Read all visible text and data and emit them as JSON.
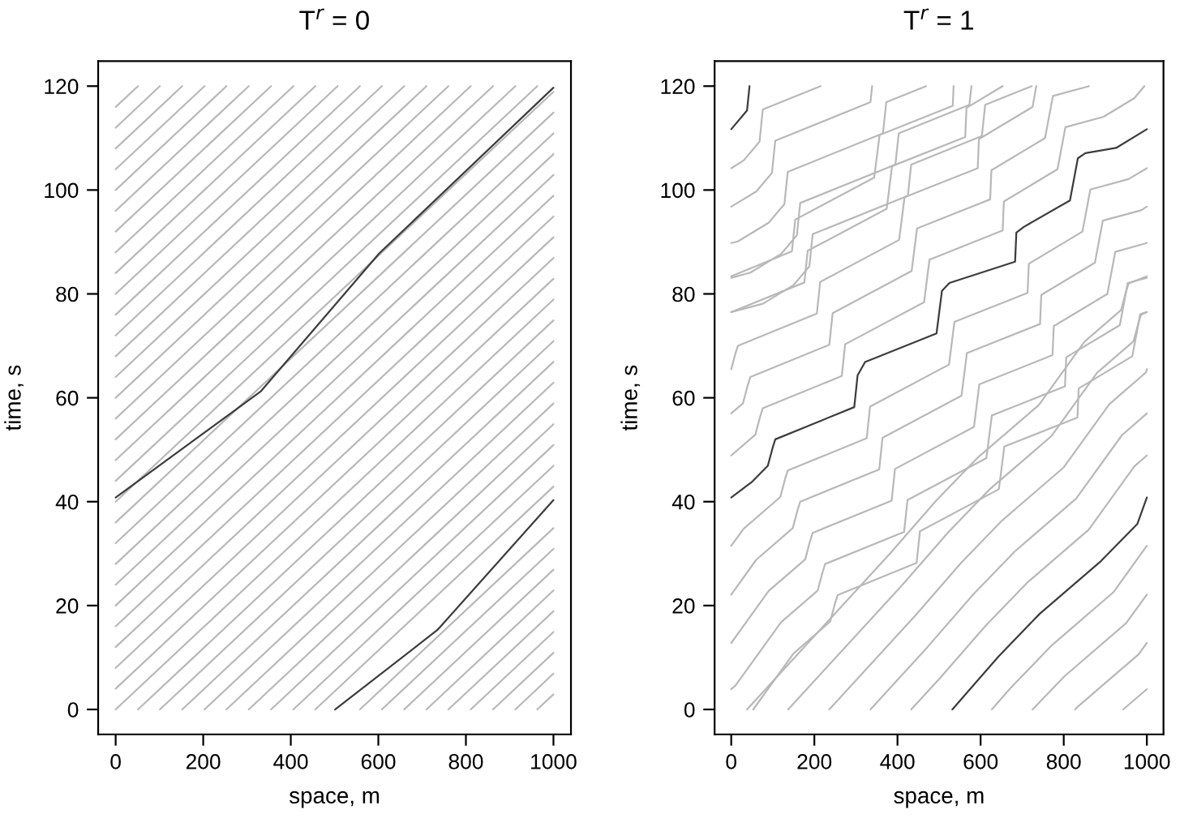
{
  "chart_data": [
    {
      "type": "line",
      "title": "T$^{r}$ = 0",
      "xlabel": "space, m",
      "ylabel": "time, s",
      "xlim": [
        -40,
        1040
      ],
      "ylim": [
        -4.8,
        124.8
      ],
      "xticks": [
        0,
        200,
        400,
        600,
        800,
        1000
      ],
      "yticks": [
        0,
        20,
        40,
        60,
        80,
        100,
        120
      ],
      "line_style": "solid",
      "series": [
        {
          "color": "#b8b8b8",
          "x": [
            0,
            1000
          ],
          "values": [
            0,
            78.9
          ]
        },
        {
          "color": "#b8b8b8",
          "x": [
            0,
            1000
          ],
          "values": [
            4,
            82.9
          ]
        },
        {
          "color": "#b8b8b8",
          "x": [
            0,
            1000
          ],
          "values": [
            8,
            86.9
          ]
        },
        {
          "color": "#b8b8b8",
          "x": [
            0,
            1000
          ],
          "values": [
            12,
            90.9
          ]
        },
        {
          "color": "#b8b8b8",
          "x": [
            0,
            1000
          ],
          "values": [
            16,
            94.9
          ]
        },
        {
          "color": "#b8b8b8",
          "x": [
            0,
            1000
          ],
          "values": [
            20,
            98.9
          ]
        },
        {
          "color": "#b8b8b8",
          "x": [
            0,
            1000
          ],
          "values": [
            24,
            102.9
          ]
        },
        {
          "color": "#b8b8b8",
          "x": [
            0,
            1000
          ],
          "values": [
            28,
            106.9
          ]
        },
        {
          "color": "#b8b8b8",
          "x": [
            0,
            1000
          ],
          "values": [
            32,
            110.9
          ]
        },
        {
          "color": "#b8b8b8",
          "x": [
            0,
            1000
          ],
          "values": [
            36,
            114.9
          ]
        },
        {
          "color": "#b8b8b8",
          "x": [
            0,
            1000
          ],
          "values": [
            40,
            118.9
          ]
        },
        {
          "color": "#b8b8b8",
          "x": [
            0,
            963
          ],
          "values": [
            44,
            120
          ]
        },
        {
          "color": "#b8b8b8",
          "x": [
            0,
            913
          ],
          "values": [
            48,
            120
          ]
        },
        {
          "color": "#b8b8b8",
          "x": [
            0,
            862
          ],
          "values": [
            52,
            120
          ]
        },
        {
          "color": "#b8b8b8",
          "x": [
            0,
            811
          ],
          "values": [
            56,
            120
          ]
        },
        {
          "color": "#b8b8b8",
          "x": [
            0,
            760
          ],
          "values": [
            60,
            120
          ]
        },
        {
          "color": "#b8b8b8",
          "x": [
            0,
            710
          ],
          "values": [
            64,
            120
          ]
        },
        {
          "color": "#b8b8b8",
          "x": [
            0,
            659
          ],
          "values": [
            68,
            120
          ]
        },
        {
          "color": "#b8b8b8",
          "x": [
            0,
            608
          ],
          "values": [
            72,
            120
          ]
        },
        {
          "color": "#b8b8b8",
          "x": [
            0,
            558
          ],
          "values": [
            76,
            120
          ]
        },
        {
          "color": "#b8b8b8",
          "x": [
            0,
            507
          ],
          "values": [
            80,
            120
          ]
        },
        {
          "color": "#b8b8b8",
          "x": [
            0,
            456
          ],
          "values": [
            84,
            120
          ]
        },
        {
          "color": "#b8b8b8",
          "x": [
            0,
            406
          ],
          "values": [
            88,
            120
          ]
        },
        {
          "color": "#b8b8b8",
          "x": [
            0,
            355
          ],
          "values": [
            92,
            120
          ]
        },
        {
          "color": "#b8b8b8",
          "x": [
            0,
            304
          ],
          "values": [
            96,
            120
          ]
        },
        {
          "color": "#b8b8b8",
          "x": [
            0,
            253
          ],
          "values": [
            100,
            120
          ]
        },
        {
          "color": "#b8b8b8",
          "x": [
            0,
            203
          ],
          "values": [
            104,
            120
          ]
        },
        {
          "color": "#b8b8b8",
          "x": [
            0,
            152
          ],
          "values": [
            108,
            120
          ]
        },
        {
          "color": "#b8b8b8",
          "x": [
            0,
            101
          ],
          "values": [
            112,
            120
          ]
        },
        {
          "color": "#b8b8b8",
          "x": [
            0,
            51
          ],
          "values": [
            116,
            120
          ]
        },
        {
          "color": "#b8b8b8",
          "x": [
            51,
            1000
          ],
          "values": [
            0,
            74.9
          ]
        },
        {
          "color": "#b8b8b8",
          "x": [
            101,
            1000
          ],
          "values": [
            0,
            70.9
          ]
        },
        {
          "color": "#b8b8b8",
          "x": [
            152,
            1000
          ],
          "values": [
            0,
            66.9
          ]
        },
        {
          "color": "#b8b8b8",
          "x": [
            203,
            1000
          ],
          "values": [
            0,
            62.9
          ]
        },
        {
          "color": "#b8b8b8",
          "x": [
            253,
            1000
          ],
          "values": [
            0,
            58.9
          ]
        },
        {
          "color": "#b8b8b8",
          "x": [
            304,
            1000
          ],
          "values": [
            0,
            54.9
          ]
        },
        {
          "color": "#b8b8b8",
          "x": [
            355,
            1000
          ],
          "values": [
            0,
            50.9
          ]
        },
        {
          "color": "#b8b8b8",
          "x": [
            406,
            1000
          ],
          "values": [
            0,
            46.9
          ]
        },
        {
          "color": "#b8b8b8",
          "x": [
            456,
            1000
          ],
          "values": [
            0,
            42.9
          ]
        },
        {
          "color": "#b8b8b8",
          "x": [
            558,
            1000
          ],
          "values": [
            0,
            34.9
          ]
        },
        {
          "color": "#b8b8b8",
          "x": [
            608,
            1000
          ],
          "values": [
            0,
            30.9
          ]
        },
        {
          "color": "#b8b8b8",
          "x": [
            659,
            1000
          ],
          "values": [
            0,
            26.9
          ]
        },
        {
          "color": "#b8b8b8",
          "x": [
            710,
            1000
          ],
          "values": [
            0,
            22.9
          ]
        },
        {
          "color": "#b8b8b8",
          "x": [
            760,
            1000
          ],
          "values": [
            0,
            18.9
          ]
        },
        {
          "color": "#b8b8b8",
          "x": [
            811,
            1000
          ],
          "values": [
            0,
            14.9
          ]
        },
        {
          "color": "#b8b8b8",
          "x": [
            862,
            1000
          ],
          "values": [
            0,
            10.9
          ]
        },
        {
          "color": "#b8b8b8",
          "x": [
            913,
            1000
          ],
          "values": [
            0,
            6.9
          ]
        },
        {
          "color": "#b8b8b8",
          "x": [
            963,
            1000
          ],
          "values": [
            0,
            2.9
          ]
        },
        {
          "color": "#3c3c3c",
          "x": [
            501,
            735,
            1000
          ],
          "values": [
            0,
            15.3,
            40.3
          ]
        },
        {
          "color": "#3c3c3c",
          "x": [
            0,
            331,
            602,
            1000
          ],
          "values": [
            40.8,
            61.2,
            87.8,
            119.7
          ]
        }
      ]
    },
    {
      "type": "line",
      "title": "T$^{r}$ = 1",
      "xlabel": "space, m",
      "ylabel": "time, s",
      "xlim": [
        -40,
        1040
      ],
      "ylim": [
        -4.8,
        124.8
      ],
      "xticks": [
        0,
        200,
        400,
        600,
        800,
        1000
      ],
      "yticks": [
        0,
        20,
        40,
        60,
        80,
        100,
        120
      ],
      "line_style": "solid",
      "series": [
        {
          "color": "#b8b8b8",
          "x": [
            38,
            382,
            493,
            592,
            740,
            850,
            938,
            950,
            956,
            1000
          ],
          "values": [
            0,
            30,
            40.2,
            48.4,
            58.6,
            70.8,
            76.9,
            80.5,
            82,
            83.4
          ]
        },
        {
          "color": "#b8b8b8",
          "x": [
            0,
            146,
            154,
            344,
            357,
            533,
            535
          ],
          "values": [
            83.4,
            88.2,
            94.3,
            102.4,
            110.6,
            116.2,
            120
          ]
        },
        {
          "color": "#b8b8b8",
          "x": [
            137,
            412,
            523,
            622,
            770,
            880,
            968,
            980,
            986,
            1000
          ],
          "values": [
            0,
            24,
            34.2,
            42.4,
            52.6,
            64.8,
            70.9,
            74.5,
            76,
            76.5
          ]
        },
        {
          "color": "#b8b8b8",
          "x": [
            0,
            176,
            184,
            374,
            387,
            563,
            566,
            653
          ],
          "values": [
            76.5,
            82.2,
            88.3,
            96.4,
            104.6,
            110.2,
            115.8,
            120
          ]
        },
        {
          "color": "#b8b8b8",
          "x": [
            236,
            442,
            553,
            652,
            800,
            910,
            998,
            1000
          ],
          "values": [
            0,
            18,
            28.2,
            36.4,
            46.6,
            58.8,
            64.9,
            65.5
          ]
        },
        {
          "color": "#b8b8b8",
          "x": [
            0,
            10,
            16,
            206,
            214,
            404,
            417,
            593,
            596,
            725,
            734
          ],
          "values": [
            65.5,
            68.5,
            70,
            76.2,
            82.3,
            90.4,
            98.6,
            104.2,
            109.8,
            116,
            120
          ]
        },
        {
          "color": "#b8b8b8",
          "x": [
            335,
            472,
            583,
            682,
            830,
            940,
            1000
          ],
          "values": [
            0,
            12,
            22.2,
            30.4,
            40.6,
            52.8,
            57.0
          ]
        },
        {
          "color": "#b8b8b8",
          "x": [
            0,
            28,
            40,
            46,
            236,
            244,
            434,
            447,
            623,
            626,
            755,
            774,
            861
          ],
          "values": [
            57.0,
            58.9,
            62.5,
            64,
            70.2,
            76.3,
            84.4,
            92.6,
            98.2,
            103.8,
            110,
            118.1,
            120
          ]
        },
        {
          "color": "#b8b8b8",
          "x": [
            433,
            502,
            613,
            712,
            860,
            970,
            1000
          ],
          "values": [
            0,
            6,
            16.2,
            24.4,
            34.6,
            46.8,
            48.9
          ]
        },
        {
          "color": "#b8b8b8",
          "x": [
            0,
            58,
            70,
            76,
            266,
            274,
            464,
            477,
            653,
            656,
            785,
            804,
            896,
            970,
            994
          ],
          "values": [
            48.9,
            52.9,
            56.5,
            58,
            64.2,
            70.3,
            78.4,
            86.6,
            92.2,
            97.8,
            104,
            112.1,
            114.1,
            117.7,
            120
          ]
        },
        {
          "color": "#b8b8b8",
          "x": [
            627,
            673,
            772,
            920,
            1000
          ],
          "values": [
            0,
            4.2,
            12.4,
            22.6,
            31.5
          ]
        },
        {
          "color": "#b8b8b8",
          "x": [
            0,
            30,
            118,
            130,
            136,
            326,
            334,
            524,
            537,
            713,
            716,
            845,
            864,
            956,
            1000
          ],
          "values": [
            31.5,
            34.8,
            40.9,
            44.5,
            46,
            52.2,
            58.3,
            66.4,
            74.6,
            80.2,
            85.8,
            92,
            100.1,
            102.1,
            104.2
          ]
        },
        {
          "color": "#b8b8b8",
          "x": [
            0,
            30,
            68,
            74,
            76,
            215
          ],
          "values": [
            104.2,
            105.7,
            109.3,
            114,
            115.5,
            120
          ]
        },
        {
          "color": "#b8b8b8",
          "x": [
            725,
            802,
            950,
            1000
          ],
          "values": [
            0,
            6.4,
            16.6,
            22.1
          ]
        },
        {
          "color": "#b8b8b8",
          "x": [
            0,
            60,
            148,
            160,
            166,
            356,
            364,
            554,
            567,
            743,
            746,
            875,
            894,
            986,
            1000
          ],
          "values": [
            22.1,
            28.8,
            34.9,
            38.5,
            40,
            46.2,
            52.3,
            60.4,
            68.6,
            74.2,
            79.8,
            86,
            94.1,
            96.1,
            96.8
          ]
        },
        {
          "color": "#b8b8b8",
          "x": [
            0,
            60,
            98,
            104,
            106,
            335,
            339
          ],
          "values": [
            96.8,
            99.7,
            103.3,
            108,
            109.5,
            116.9,
            120
          ]
        },
        {
          "color": "#b8b8b8",
          "x": [
            827,
            832,
            980,
            1000
          ],
          "values": [
            0,
            0.4,
            10.6,
            12.8
          ]
        },
        {
          "color": "#b8b8b8",
          "x": [
            0,
            90,
            178,
            190,
            196,
            386,
            394,
            584,
            597,
            773,
            776,
            905,
            924,
            1000
          ],
          "values": [
            12.8,
            22.8,
            28.9,
            32.5,
            34,
            40.2,
            46.3,
            54.4,
            62.6,
            68.2,
            73.8,
            80,
            88.1,
            89.8
          ]
        },
        {
          "color": "#b8b8b8",
          "x": [
            0,
            16,
            90,
            128,
            134,
            136,
            365,
            373,
            469
          ],
          "values": [
            89.8,
            90.1,
            93.7,
            97.3,
            102,
            103.5,
            110.9,
            116.9,
            120
          ]
        },
        {
          "color": "#b8b8b8",
          "x": [
            943,
            1000
          ],
          "values": [
            0,
            3.9
          ]
        },
        {
          "color": "#b8b8b8",
          "x": [
            0,
            10,
            120,
            208,
            220,
            226,
            416,
            424,
            614,
            627,
            803,
            806,
            935,
            954,
            1000
          ],
          "values": [
            3.9,
            4.6,
            16.8,
            22.9,
            26.5,
            28,
            34.2,
            40.3,
            48.4,
            56.6,
            62.2,
            67.8,
            74,
            82.1,
            83.1
          ]
        },
        {
          "color": "#b8b8b8",
          "x": [
            0,
            46,
            120,
            158,
            164,
            166,
            395,
            403,
            573,
            578
          ],
          "values": [
            83.1,
            84.1,
            87.7,
            91.3,
            96,
            97.5,
            104.9,
            110.9,
            116.4,
            120
          ]
        },
        {
          "color": "#b8b8b8",
          "x": [
            53,
            150,
            238,
            250,
            256,
            446,
            454,
            644,
            657,
            833,
            836,
            965,
            984,
            1000
          ],
          "values": [
            0,
            10.8,
            16.9,
            20.5,
            22,
            28.2,
            34.3,
            42.4,
            50.6,
            56.2,
            61.8,
            68,
            76.1,
            76.5
          ]
        },
        {
          "color": "#b8b8b8",
          "x": [
            0,
            76,
            150,
            188,
            194,
            196,
            425,
            433,
            603,
            611,
            723
          ],
          "values": [
            76.5,
            78.1,
            81.7,
            85.3,
            90,
            91.5,
            98.9,
            104.9,
            110.4,
            116.4,
            120
          ]
        },
        {
          "color": "#3c3c3c",
          "x": [
            532,
            643,
            742,
            890,
            977,
            1000
          ],
          "values": [
            0,
            10.2,
            18.4,
            28.6,
            35.7,
            40.8
          ]
        },
        {
          "color": "#3c3c3c",
          "x": [
            0,
            51,
            88,
            100,
            106,
            296,
            304,
            322,
            494,
            507,
            525,
            683,
            686,
            704,
            815,
            834,
            852,
            926,
            1000
          ],
          "values": [
            40.8,
            43.9,
            46.9,
            50.5,
            52,
            58.2,
            64.3,
            66.9,
            72.4,
            80.6,
            82.1,
            86.2,
            91.8,
            92.9,
            98,
            106.1,
            107.1,
            108.1,
            111.7
          ]
        },
        {
          "color": "#3c3c3c",
          "x": [
            0,
            38,
            44
          ],
          "values": [
            111.7,
            115.3,
            120
          ]
        }
      ]
    }
  ]
}
